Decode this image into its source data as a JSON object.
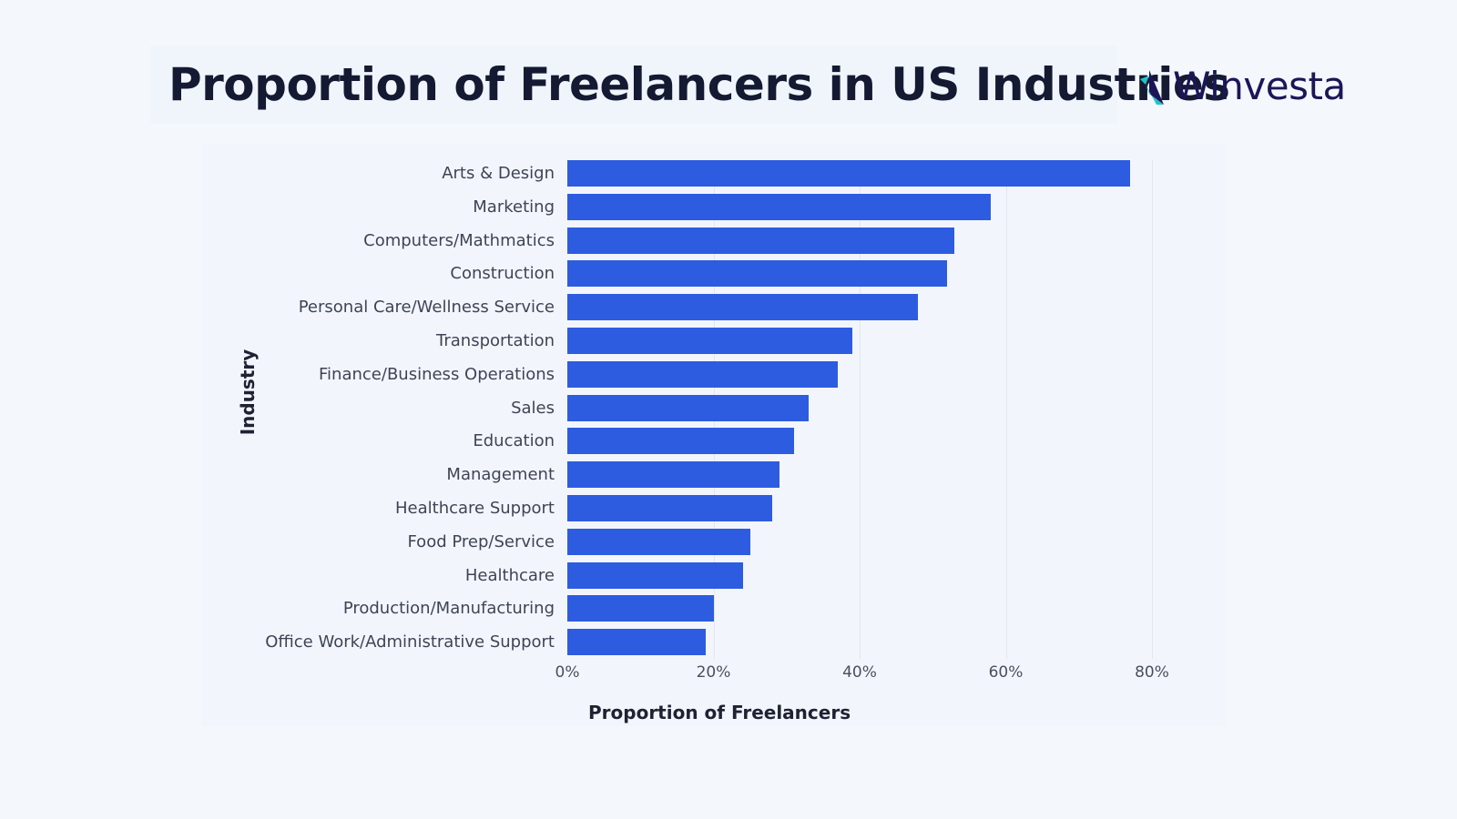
{
  "header": {
    "title": "Proportion of Freelancers in US Industries",
    "logo_text": "Winvesta",
    "logo_icon": "bird-logo-icon"
  },
  "colors": {
    "bar": "#2d5ce1",
    "title": "#151a33",
    "logo_dark": "#1c1657",
    "logo_teal": "#23c3c8",
    "background": "#f4f8fd"
  },
  "chart_data": {
    "type": "bar",
    "orientation": "horizontal",
    "title": "Proportion of Freelancers in US Industries",
    "xlabel": "Proportion of Freelancers",
    "ylabel": "Industry",
    "xlim": [
      0,
      80
    ],
    "x_ticks": [
      "0%",
      "20%",
      "40%",
      "60%",
      "80%"
    ],
    "grid": "vertical",
    "legend": "none",
    "categories": [
      "Arts & Design",
      "Marketing",
      "Computers/Mathmatics",
      "Construction",
      "Personal Care/Wellness Service",
      "Transportation",
      "Finance/Business Operations",
      "Sales",
      "Education",
      "Management",
      "Healthcare Support",
      "Food Prep/Service",
      "Healthcare",
      "Production/Manufacturing",
      "Office Work/Administrative Support"
    ],
    "values": [
      77,
      58,
      53,
      52,
      48,
      39,
      37,
      33,
      31,
      29,
      28,
      25,
      24,
      20,
      19
    ],
    "unit": "%"
  }
}
